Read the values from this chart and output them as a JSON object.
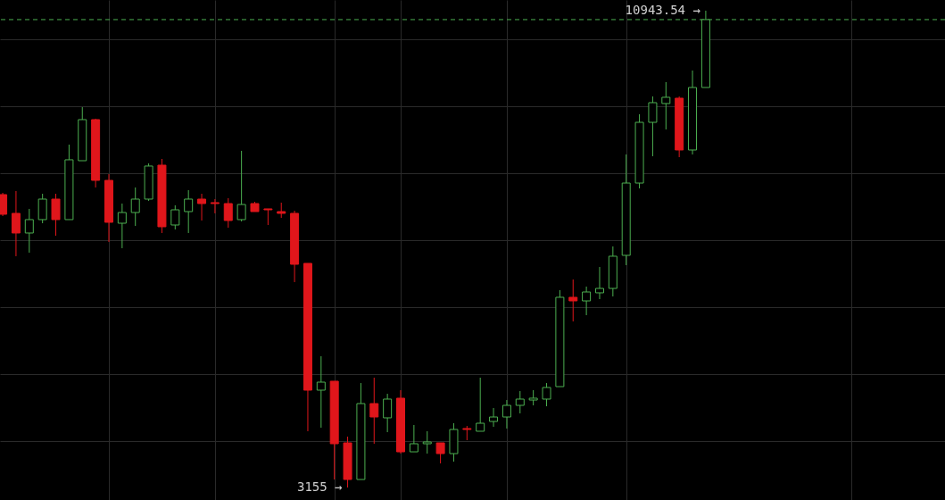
{
  "chart_data": {
    "type": "candlestick",
    "categories": [
      null,
      null,
      null,
      null,
      null,
      null,
      null,
      null,
      null,
      null,
      null,
      null,
      null,
      null,
      null,
      null,
      null,
      null,
      null,
      null,
      null,
      null,
      null,
      null,
      null,
      null,
      null,
      null,
      null,
      null,
      null,
      null,
      null,
      null,
      null,
      null,
      null,
      null,
      null,
      null,
      null,
      null,
      null,
      null,
      null,
      null,
      null,
      null,
      null,
      null,
      null,
      null,
      null,
      null
    ],
    "ohlc": [
      [
        7939,
        7968,
        7589,
        7618
      ],
      [
        7633,
        7997,
        6933,
        7312
      ],
      [
        7312,
        7706,
        6991,
        7531
      ],
      [
        7531,
        7953,
        7472,
        7866
      ],
      [
        7866,
        7953,
        7268,
        7531
      ],
      [
        7531,
        8756,
        7531,
        8508
      ],
      [
        8493,
        9368,
        8493,
        9164
      ],
      [
        9164,
        9179,
        8056,
        8172
      ],
      [
        8172,
        8274,
        7166,
        7487
      ],
      [
        7472,
        7793,
        7064,
        7647
      ],
      [
        7647,
        8056,
        7428,
        7866
      ],
      [
        7866,
        8449,
        7837,
        8406
      ],
      [
        8420,
        8522,
        7312,
        7414
      ],
      [
        7443,
        7764,
        7370,
        7691
      ],
      [
        7662,
        8012,
        7312,
        7866
      ],
      [
        7866,
        7953,
        7516,
        7793
      ],
      [
        7808,
        7866,
        7633,
        7793
      ],
      [
        7793,
        7881,
        7399,
        7516
      ],
      [
        7531,
        8654,
        7501,
        7778
      ],
      [
        7793,
        7822,
        7662,
        7662
      ],
      [
        7706,
        7706,
        7443,
        7691
      ],
      [
        7662,
        7808,
        7560,
        7633
      ],
      [
        7633,
        7676,
        6510,
        6801
      ],
      [
        6816,
        6816,
        4074,
        4745
      ],
      [
        4745,
        5299,
        4132,
        4876
      ],
      [
        4891,
        4891,
        3286,
        3870
      ],
      [
        3884,
        3986,
        3155,
        3286
      ],
      [
        3286,
        4861,
        3286,
        4526
      ],
      [
        4526,
        4949,
        3870,
        4307
      ],
      [
        4293,
        4686,
        4059,
        4599
      ],
      [
        4614,
        4745,
        3709,
        3738
      ],
      [
        3738,
        4176,
        3738,
        3870
      ],
      [
        3870,
        4074,
        3709,
        3899
      ],
      [
        3884,
        3884,
        3549,
        3709
      ],
      [
        3709,
        4205,
        3578,
        4103
      ],
      [
        4118,
        4161,
        3928,
        4103
      ],
      [
        4074,
        4949,
        4074,
        4205
      ],
      [
        4234,
        4453,
        4147,
        4307
      ],
      [
        4307,
        4584,
        4118,
        4497
      ],
      [
        4497,
        4730,
        4366,
        4599
      ],
      [
        4584,
        4745,
        4497,
        4614
      ],
      [
        4599,
        4861,
        4482,
        4789
      ],
      [
        4803,
        6378,
        4803,
        6262
      ],
      [
        6262,
        6553,
        5868,
        6203
      ],
      [
        6203,
        6437,
        5970,
        6349
      ],
      [
        6335,
        6757,
        6232,
        6407
      ],
      [
        6407,
        7093,
        6276,
        6933
      ],
      [
        6947,
        8595,
        6787,
        8128
      ],
      [
        8128,
        9252,
        8041,
        9120
      ],
      [
        9120,
        9543,
        8566,
        9441
      ],
      [
        9427,
        9777,
        9004,
        9529
      ],
      [
        9514,
        9543,
        8551,
        8668
      ],
      [
        8668,
        9966,
        8595,
        9689
      ],
      [
        9689,
        10943.54,
        9689,
        10798
      ]
    ],
    "colors": [
      "#e0161b",
      "#e0161b",
      "#4caf50",
      "#4caf50",
      "#e0161b",
      "#4caf50",
      "#4caf50",
      "#e0161b",
      "#e0161b",
      "#4caf50",
      "#4caf50",
      "#4caf50",
      "#e0161b",
      "#4caf50",
      "#4caf50",
      "#e0161b",
      "#e0161b",
      "#e0161b",
      "#4caf50",
      "#e0161b",
      "#e0161b",
      "#e0161b",
      "#e0161b",
      "#e0161b",
      "#4caf50",
      "#e0161b",
      "#e0161b",
      "#4caf50",
      "#e0161b",
      "#4caf50",
      "#e0161b",
      "#4caf50",
      "#4caf50",
      "#e0161b",
      "#4caf50",
      "#e0161b",
      "#4caf50",
      "#4caf50",
      "#4caf50",
      "#4caf50",
      "#4caf50",
      "#4caf50",
      "#4caf50",
      "#e0161b",
      "#4caf50",
      "#4caf50",
      "#4caf50",
      "#4caf50",
      "#4caf50",
      "#4caf50",
      "#4caf50",
      "#e0161b",
      "#4caf50",
      "#4caf50"
    ],
    "ylim": [
      2951,
      11118
    ],
    "yticks": [
      {
        "value": 3913,
        "label": null
      },
      {
        "value": 5007,
        "label": null
      },
      {
        "value": 6101,
        "label": null
      },
      {
        "value": 7195,
        "label": null
      },
      {
        "value": 8289,
        "label": null
      },
      {
        "value": 9383,
        "label": null
      },
      {
        "value": 10477,
        "label": null
      }
    ],
    "ref_lines": [
      {
        "axis": "y",
        "value": 10798,
        "label": null,
        "color": "#4caf50",
        "line_style": "dashed"
      }
    ],
    "annotations": [
      "10943.54 →",
      "3155 →"
    ],
    "grid": true
  }
}
